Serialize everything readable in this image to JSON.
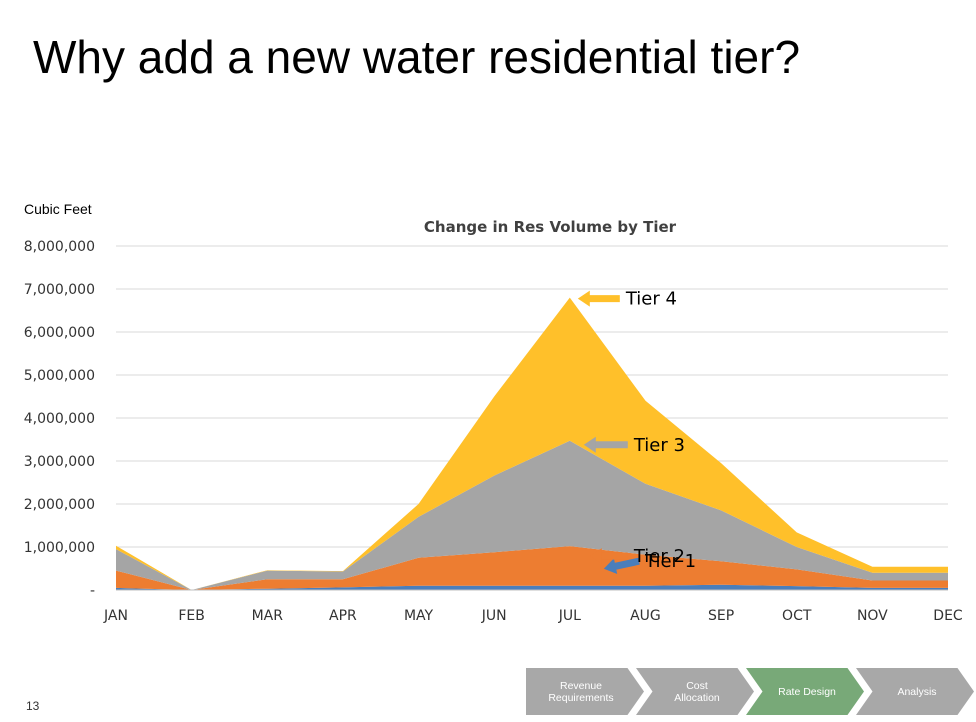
{
  "slide": {
    "title": "Why add a new water residential tier?",
    "y_unit_label": "Cubic Feet",
    "page_number": "13"
  },
  "colors": {
    "tier1": "#4a7ebb",
    "tier2": "#ed7d31",
    "tier3": "#a5a5a5",
    "tier4": "#ffc02a",
    "gridline": "#d9d9d9",
    "axis": "#bfbfbf",
    "step_inactive": "#a8a8a8",
    "step_active": "#78a978"
  },
  "chart_data": {
    "type": "area",
    "stacked": true,
    "title": "Change in Res Volume by Tier",
    "ylabel": "Cubic Feet",
    "xlabel": "",
    "ylim": [
      0,
      8000000
    ],
    "grid": true,
    "categories": [
      "JAN",
      "FEB",
      "MAR",
      "APR",
      "MAY",
      "JUN",
      "JUL",
      "AUG",
      "SEP",
      "OCT",
      "NOV",
      "DEC"
    ],
    "yticks": [
      0,
      1000000,
      2000000,
      3000000,
      4000000,
      5000000,
      6000000,
      7000000,
      8000000
    ],
    "ytick_labels": [
      "-",
      "1,000,000",
      "2,000,000",
      "3,000,000",
      "4,000,000",
      "5,000,000",
      "6,000,000",
      "7,000,000",
      "8,000,000"
    ],
    "series": [
      {
        "name": "Tier 1",
        "color_key": "tier1",
        "values": [
          50000,
          0,
          30000,
          60000,
          100000,
          100000,
          100000,
          100000,
          120000,
          90000,
          50000,
          50000
        ]
      },
      {
        "name": "Tier 2",
        "color_key": "tier2",
        "values": [
          400000,
          0,
          220000,
          190000,
          650000,
          780000,
          920000,
          720000,
          550000,
          390000,
          170000,
          170000
        ]
      },
      {
        "name": "Tier 3",
        "color_key": "tier3",
        "values": [
          500000,
          0,
          200000,
          180000,
          950000,
          1780000,
          2450000,
          1650000,
          1180000,
          520000,
          180000,
          180000
        ]
      },
      {
        "name": "Tier 4",
        "color_key": "tier4",
        "values": [
          80000,
          0,
          10000,
          10000,
          300000,
          1840000,
          3330000,
          1930000,
          1100000,
          340000,
          140000,
          140000
        ]
      }
    ],
    "annotations": [
      {
        "text": "Tier 1",
        "series": "Tier 1",
        "arrow_color_key": "tier1"
      },
      {
        "text": "Tier 2",
        "series": "Tier 2",
        "arrow_color_key": "tier2"
      },
      {
        "text": "Tier 3",
        "series": "Tier 3",
        "arrow_color_key": "tier3"
      },
      {
        "text": "Tier 4",
        "series": "Tier 4",
        "arrow_color_key": "tier4"
      }
    ]
  },
  "process_steps": [
    {
      "label": "Revenue\nRequirements",
      "active": false
    },
    {
      "label": "Cost\nAllocation",
      "active": false
    },
    {
      "label": "Rate Design",
      "active": true
    },
    {
      "label": "Analysis",
      "active": false
    }
  ]
}
